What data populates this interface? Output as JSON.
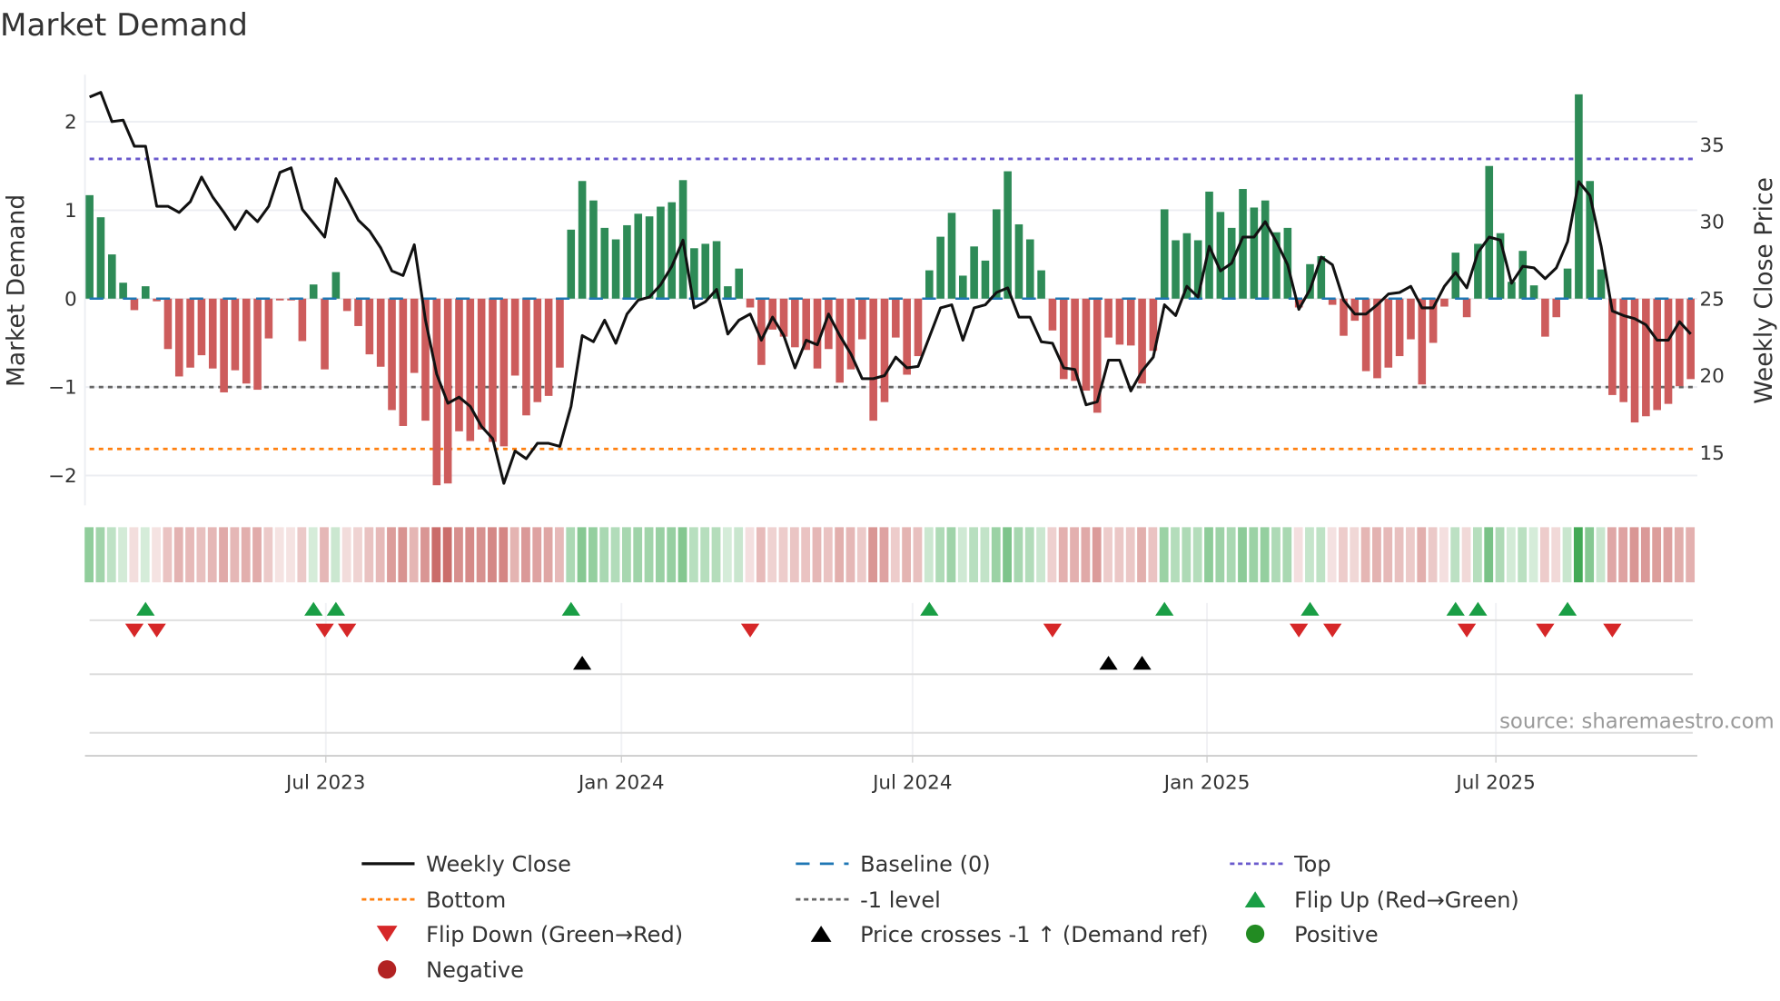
{
  "chart_data": {
    "type": "bar",
    "title": "Market Demand",
    "ylabel": "Market Demand",
    "y2label": "Weekly Close Price",
    "ylim": [
      -2.35,
      2.5
    ],
    "y2lim": [
      11.6,
      38.9
    ],
    "yticks": [
      {
        "v": 2,
        "label": "2"
      },
      {
        "v": 1,
        "label": "1"
      },
      {
        "v": 0,
        "label": "0"
      },
      {
        "v": -1,
        "label": "−1"
      },
      {
        "v": -2,
        "label": "−2"
      }
    ],
    "y2ticks": [
      {
        "v": 35,
        "label": "35"
      },
      {
        "v": 30,
        "label": "30"
      },
      {
        "v": 25,
        "label": "25"
      },
      {
        "v": 20,
        "label": "20"
      },
      {
        "v": 15,
        "label": "15"
      }
    ],
    "xticks": [
      {
        "week": 21.1,
        "label": "Jul 2023"
      },
      {
        "week": 47.5,
        "label": "Jan 2024"
      },
      {
        "week": 73.5,
        "label": "Jul 2024"
      },
      {
        "week": 99.8,
        "label": "Jan 2025"
      },
      {
        "week": 125.6,
        "label": "Jul 2025"
      }
    ],
    "reference_lines": {
      "baseline": 0,
      "top": 1.58,
      "bottom": -1.7,
      "minus_one": -1
    },
    "demand": [
      1.17,
      0.92,
      0.5,
      0.18,
      -0.13,
      0.14,
      -0.03,
      -0.57,
      -0.88,
      -0.78,
      -0.64,
      -0.79,
      -1.06,
      -0.81,
      -0.96,
      -1.03,
      -0.45,
      -0.02,
      -0.02,
      -0.48,
      0.16,
      -0.8,
      0.3,
      -0.14,
      -0.31,
      -0.63,
      -0.77,
      -1.26,
      -1.44,
      -0.84,
      -1.38,
      -2.11,
      -2.09,
      -1.5,
      -1.61,
      -1.48,
      -1.62,
      -1.67,
      -0.87,
      -1.32,
      -1.17,
      -1.1,
      -0.78,
      0.78,
      1.33,
      1.11,
      0.8,
      0.67,
      0.83,
      0.96,
      0.93,
      1.04,
      1.09,
      1.34,
      0.57,
      0.62,
      0.65,
      0.14,
      0.34,
      -0.1,
      -0.75,
      -0.35,
      -0.43,
      -0.55,
      -0.58,
      -0.79,
      -0.57,
      -0.95,
      -0.8,
      -0.46,
      -1.38,
      -1.17,
      -0.44,
      -0.86,
      -0.65,
      0.32,
      0.7,
      0.97,
      0.26,
      0.59,
      0.43,
      1.01,
      1.44,
      0.84,
      0.67,
      0.32,
      -0.36,
      -0.91,
      -0.93,
      -1.04,
      -1.29,
      -0.44,
      -0.52,
      -0.53,
      -0.96,
      -0.59,
      1.01,
      0.66,
      0.74,
      0.66,
      1.21,
      0.98,
      0.8,
      1.24,
      1.03,
      1.11,
      0.75,
      0.8,
      -0.1,
      0.39,
      0.48,
      -0.07,
      -0.42,
      -0.25,
      -0.82,
      -0.9,
      -0.78,
      -0.65,
      -0.46,
      -0.97,
      -0.5,
      -0.09,
      0.52,
      -0.21,
      0.62,
      1.5,
      0.74,
      0.19,
      0.54,
      0.15,
      -0.43,
      -0.21,
      0.34,
      2.31,
      1.33,
      0.33,
      -1.09,
      -1.17,
      -1.4,
      -1.33,
      -1.26,
      -1.19,
      -0.99,
      -0.91
    ],
    "weekly_close": [
      38.1,
      38.4,
      36.5,
      36.6,
      34.9,
      34.9,
      31.0,
      31.0,
      30.6,
      31.3,
      32.9,
      31.6,
      30.6,
      29.5,
      30.7,
      30.0,
      31.0,
      33.2,
      33.5,
      30.8,
      29.9,
      29.0,
      32.8,
      31.5,
      30.1,
      29.4,
      28.3,
      26.8,
      26.5,
      28.5,
      23.6,
      20.1,
      18.2,
      18.6,
      18.0,
      16.7,
      15.9,
      13.0,
      15.1,
      14.6,
      15.6,
      15.6,
      15.4,
      18.0,
      22.6,
      22.2,
      23.6,
      22.1,
      24.0,
      24.9,
      25.1,
      25.9,
      27.1,
      28.8,
      24.4,
      24.8,
      25.6,
      22.7,
      23.6,
      24.0,
      22.3,
      23.8,
      22.6,
      20.5,
      22.3,
      22.0,
      24.0,
      22.6,
      21.4,
      19.8,
      19.8,
      20.0,
      21.2,
      20.5,
      20.6,
      22.5,
      24.4,
      24.6,
      22.3,
      24.4,
      24.6,
      25.4,
      25.7,
      23.8,
      23.8,
      22.2,
      22.1,
      20.5,
      20.4,
      18.1,
      18.3,
      21.0,
      21.0,
      19.0,
      20.3,
      21.2,
      24.6,
      23.9,
      25.8,
      25.1,
      28.4,
      26.8,
      27.3,
      29.0,
      29.0,
      30.0,
      28.7,
      27.2,
      24.3,
      25.6,
      27.7,
      27.2,
      24.9,
      24.0,
      24.0,
      24.6,
      25.3,
      25.4,
      25.8,
      24.4,
      24.4,
      25.8,
      26.7,
      25.7,
      28.0,
      29.0,
      28.8,
      26.0,
      27.1,
      27.0,
      26.3,
      27.0,
      28.7,
      32.6,
      31.7,
      28.4,
      24.2,
      23.9,
      23.7,
      23.3,
      22.3,
      22.3,
      23.5,
      22.7
    ],
    "flip_up_weeks": [
      5,
      20,
      22,
      43,
      75,
      96,
      109,
      122,
      124,
      132
    ],
    "flip_down_weeks": [
      4,
      6,
      21,
      23,
      59,
      86,
      108,
      111,
      123,
      130,
      136
    ],
    "price_cross_weeks": [
      44,
      91,
      94
    ],
    "legend": [
      {
        "key": "weekly_close",
        "label": "Weekly Close"
      },
      {
        "key": "baseline",
        "label": "Baseline (0)"
      },
      {
        "key": "top",
        "label": "Top"
      },
      {
        "key": "bottom",
        "label": "Bottom"
      },
      {
        "key": "minus_one",
        "label": "-1 level"
      },
      {
        "key": "flip_up",
        "label": "Flip Up (Red→Green)"
      },
      {
        "key": "flip_down",
        "label": "Flip Down (Green→Red)"
      },
      {
        "key": "price_cross",
        "label": "Price crosses -1 ↑ (Demand ref)"
      },
      {
        "key": "positive",
        "label": "Positive"
      },
      {
        "key": "negative",
        "label": "Negative"
      }
    ],
    "legend_placement": "bottom",
    "grid": true
  },
  "source": "source: sharemaestro.com",
  "colors": {
    "positive_bar": "#2e8b57",
    "negative_bar": "#cd5c5c",
    "line": "#111111",
    "baseline": "#1f77b4",
    "top": "#6a5acd",
    "bottom": "#ff7f0e",
    "minus_one": "#666666",
    "flip_up": "#1a9e45",
    "flip_down": "#d62728",
    "price_cross": "#000000",
    "positive": "#228b22",
    "negative": "#b22222"
  }
}
